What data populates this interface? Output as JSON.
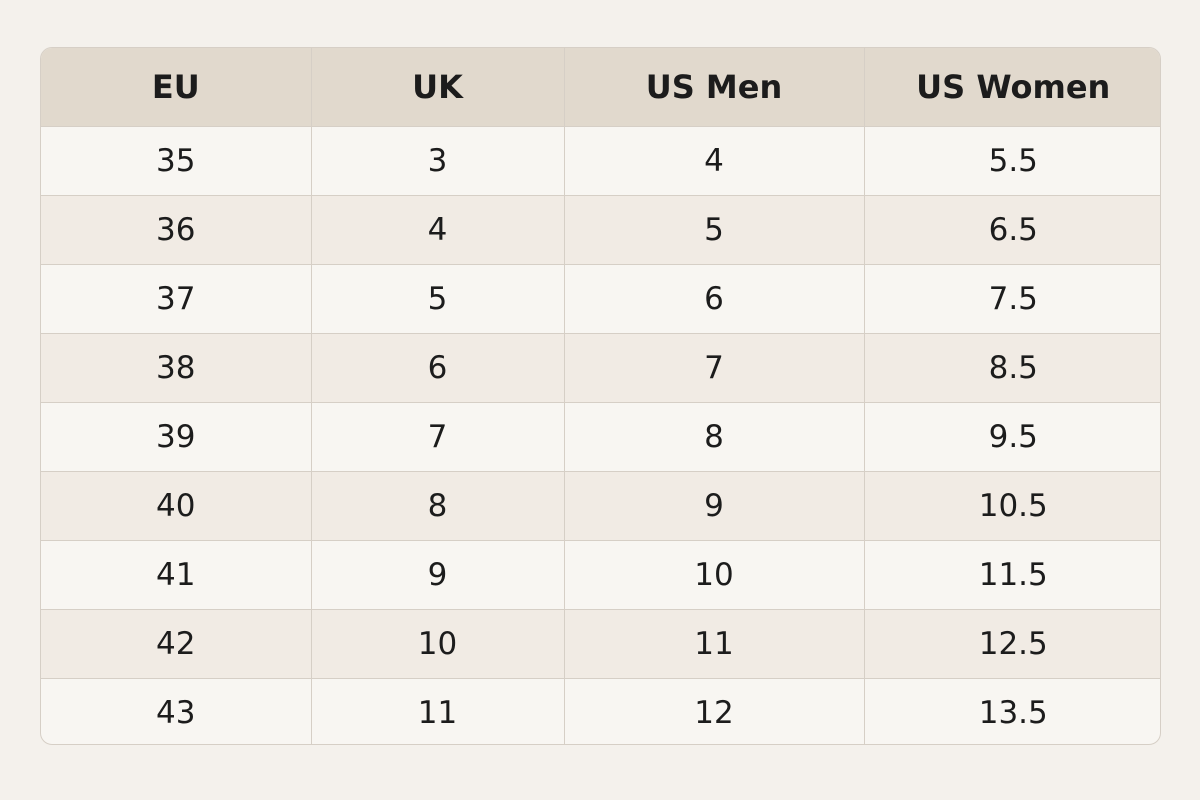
{
  "table": {
    "header": [
      "EU",
      "UK",
      "US Men",
      "US Women"
    ],
    "rows": [
      [
        "35",
        "3",
        "4",
        "5.5"
      ],
      [
        "36",
        "4",
        "5",
        "6.5"
      ],
      [
        "37",
        "5",
        "6",
        "7.5"
      ],
      [
        "38",
        "6",
        "7",
        "8.5"
      ],
      [
        "39",
        "7",
        "8",
        "9.5"
      ],
      [
        "40",
        "8",
        "9",
        "10.5"
      ],
      [
        "41",
        "9",
        "10",
        "11.5"
      ],
      [
        "42",
        "10",
        "11",
        "12.5"
      ],
      [
        "43",
        "11",
        "12",
        "13.5"
      ]
    ]
  }
}
